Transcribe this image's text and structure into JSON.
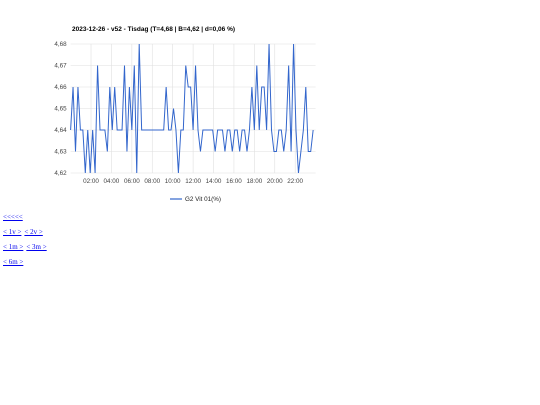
{
  "chart_data": {
    "type": "line",
    "title": "2023-12-26 - v52 - Tisdag (T=4,68 | B=4,62 | d=0,06 %)",
    "x": [
      0,
      0.24,
      0.48,
      0.72,
      0.96,
      1.2,
      1.44,
      1.68,
      1.92,
      2.16,
      2.4,
      2.64,
      2.88,
      3.12,
      3.36,
      3.6,
      3.84,
      4.08,
      4.32,
      4.56,
      4.8,
      5.04,
      5.28,
      5.52,
      5.76,
      6,
      6.24,
      6.48,
      6.72,
      6.96,
      7.2,
      7.44,
      7.68,
      7.92,
      8.16,
      8.4,
      8.64,
      8.88,
      9.12,
      9.36,
      9.6,
      9.84,
      10.08,
      10.32,
      10.56,
      10.8,
      11.04,
      11.28,
      11.52,
      11.76,
      12,
      12.24,
      12.48,
      12.72,
      12.96,
      13.2,
      13.44,
      13.68,
      13.92,
      14.16,
      14.4,
      14.64,
      14.88,
      15.12,
      15.36,
      15.6,
      15.84,
      16.08,
      16.32,
      16.56,
      16.8,
      17.04,
      17.28,
      17.52,
      17.76,
      18,
      18.24,
      18.48,
      18.72,
      18.96,
      19.2,
      19.44,
      19.68,
      19.92,
      20.16,
      20.4,
      20.64,
      20.88,
      21.12,
      21.36,
      21.6,
      21.84,
      22.08,
      22.32,
      22.56,
      22.8,
      23.04,
      23.28,
      23.52,
      23.76
    ],
    "series": [
      {
        "name": "G2 Vit 01(%)",
        "color": "#3366cc",
        "values": [
          4.64,
          4.66,
          4.63,
          4.66,
          4.64,
          4.64,
          4.62,
          4.64,
          4.62,
          4.64,
          4.62,
          4.67,
          4.64,
          4.64,
          4.64,
          4.63,
          4.66,
          4.64,
          4.66,
          4.64,
          4.64,
          4.64,
          4.67,
          4.63,
          4.66,
          4.64,
          4.67,
          4.62,
          4.68,
          4.64,
          4.64,
          4.64,
          4.64,
          4.64,
          4.64,
          4.64,
          4.64,
          4.64,
          4.64,
          4.66,
          4.64,
          4.64,
          4.65,
          4.64,
          4.62,
          4.64,
          4.64,
          4.67,
          4.66,
          4.66,
          4.64,
          4.67,
          4.64,
          4.63,
          4.64,
          4.64,
          4.64,
          4.64,
          4.64,
          4.63,
          4.64,
          4.64,
          4.64,
          4.63,
          4.64,
          4.64,
          4.63,
          4.64,
          4.64,
          4.63,
          4.64,
          4.64,
          4.63,
          4.64,
          4.66,
          4.64,
          4.67,
          4.64,
          4.66,
          4.66,
          4.64,
          4.68,
          4.64,
          4.63,
          4.63,
          4.64,
          4.64,
          4.63,
          4.64,
          4.67,
          4.63,
          4.68,
          4.64,
          4.62,
          4.63,
          4.64,
          4.66,
          4.63,
          4.63,
          4.64
        ]
      }
    ],
    "xlim": [
      0,
      24
    ],
    "xticks": [
      {
        "value": 2,
        "label": "02:00"
      },
      {
        "value": 4,
        "label": "04:00"
      },
      {
        "value": 6,
        "label": "06:00"
      },
      {
        "value": 8,
        "label": "08:00"
      },
      {
        "value": 10,
        "label": "10:00"
      },
      {
        "value": 12,
        "label": "12:00"
      },
      {
        "value": 14,
        "label": "14:00"
      },
      {
        "value": 16,
        "label": "16:00"
      },
      {
        "value": 18,
        "label": "18:00"
      },
      {
        "value": 20,
        "label": "20:00"
      },
      {
        "value": 22,
        "label": "22:00"
      }
    ],
    "ylim": [
      4.62,
      4.68
    ],
    "yticks": [
      {
        "value": 4.62,
        "label": "4,62"
      },
      {
        "value": 4.63,
        "label": "4,63"
      },
      {
        "value": 4.64,
        "label": "4,64"
      },
      {
        "value": 4.65,
        "label": "4,65"
      },
      {
        "value": 4.66,
        "label": "4,66"
      },
      {
        "value": 4.67,
        "label": "4,67"
      },
      {
        "value": 4.68,
        "label": "4,68"
      }
    ],
    "grid": true,
    "legend": "bottom"
  },
  "links": [
    [
      "<<<<<"
    ],
    [
      "< 1v >",
      "< 2v >"
    ],
    [
      "< 1m >",
      "< 3m >"
    ],
    [
      "< 6m >"
    ]
  ]
}
